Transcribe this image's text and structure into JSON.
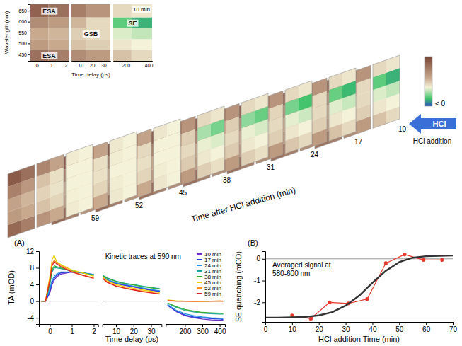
{
  "chart_data": [
    {
      "type": "heatmap",
      "title": "10 min",
      "xlabel": "Time delay (ps)",
      "ylabel": "Wavelength (nm)",
      "annotations": [
        "ESA",
        "GSB",
        "SE",
        "ESA"
      ],
      "segments": [
        {
          "xlim": [
            -0.5,
            2.2
          ],
          "xticks": [
            0,
            1,
            2
          ],
          "x_edges": [
            -0.5,
            0.8,
            2.2
          ]
        },
        {
          "xlim": [
            2.2,
            36
          ],
          "xticks": [
            10,
            20,
            30
          ],
          "x_edges": [
            2.2,
            15,
            36
          ]
        },
        {
          "xlim": [
            90,
            430
          ],
          "xticks": [
            200,
            400
          ],
          "x_edges": [
            90,
            250,
            430
          ]
        }
      ],
      "ylim": [
        420,
        680
      ],
      "yticks": [
        450,
        500,
        550,
        600,
        650
      ],
      "y_edges": [
        420,
        470,
        520,
        570,
        620,
        680
      ],
      "cells": [
        [
          7,
          6,
          5,
          4,
          2,
          1
        ],
        [
          4,
          3,
          2,
          1.5,
          0.5,
          0
        ],
        [
          3,
          2.5,
          1.5,
          1,
          -0.5,
          -1
        ],
        [
          5,
          4,
          2.5,
          1,
          -3,
          -4
        ],
        [
          8,
          7,
          6,
          4.5,
          1,
          0.5
        ]
      ]
    },
    {
      "type": "heatmap_stack",
      "xlabel": "Time after HCl addition (min)",
      "arrow_label": "HCl",
      "arrow_caption": "HCl addition",
      "colorbar": {
        "lim": [
          -6,
          10
        ],
        "label": "< 0"
      },
      "panels": [
        {
          "time": 10,
          "cells": [
            [
              7,
              6,
              5,
              4,
              2,
              1
            ],
            [
              4,
              3,
              2,
              1.5,
              0.5,
              0
            ],
            [
              3,
              2.5,
              1.5,
              1,
              -0.5,
              -1
            ],
            [
              5,
              4,
              2.5,
              1,
              -3,
              -4
            ],
            [
              8,
              7,
              6,
              4.5,
              1,
              0.5
            ]
          ]
        },
        {
          "time": 17,
          "cells": [
            [
              7,
              6,
              5,
              4,
              2,
              1
            ],
            [
              4,
              3,
              2,
              1.5,
              0.5,
              0
            ],
            [
              3,
              2.5,
              1.5,
              1,
              -0.4,
              -0.9
            ],
            [
              5,
              4,
              2.5,
              1,
              -2.8,
              -3.8
            ],
            [
              8,
              7,
              6,
              4.5,
              1,
              0.5
            ]
          ]
        },
        {
          "time": 24,
          "cells": [
            [
              7,
              6,
              5,
              4,
              1.8,
              1
            ],
            [
              4,
              3,
              2,
              1.5,
              0.5,
              0
            ],
            [
              3,
              2.5,
              1.5,
              1,
              -0.3,
              -0.8
            ],
            [
              5,
              4,
              2.6,
              1.2,
              -2.5,
              -3.5
            ],
            [
              8,
              7,
              6,
              4.5,
              1,
              0.5
            ]
          ]
        },
        {
          "time": 31,
          "cells": [
            [
              7,
              6,
              5,
              4,
              1.5,
              0.8
            ],
            [
              4,
              3,
              2.2,
              1.6,
              0.4,
              0
            ],
            [
              3.2,
              2.6,
              1.6,
              1,
              -0.2,
              -0.6
            ],
            [
              5.5,
              4.5,
              3,
              1.5,
              -2,
              -2.8
            ],
            [
              8,
              7,
              6,
              4.5,
              1,
              0.5
            ]
          ]
        },
        {
          "time": 38,
          "cells": [
            [
              7,
              6,
              5,
              4,
              1.5,
              0.8
            ],
            [
              4,
              3,
              2.2,
              1.6,
              0.4,
              0
            ],
            [
              3.2,
              2.6,
              1.6,
              1,
              -0.2,
              -0.5
            ],
            [
              5.5,
              4.5,
              3,
              1.5,
              -1.5,
              -2.5
            ],
            [
              8,
              7,
              6,
              4.5,
              1,
              0.5
            ]
          ]
        },
        {
          "time": 45,
          "cells": [
            [
              7.5,
              6,
              4.5,
              3,
              0.5,
              0
            ],
            [
              4,
              3,
              2,
              1.2,
              0.2,
              0
            ],
            [
              3.5,
              2.5,
              1.5,
              0.8,
              0,
              0
            ],
            [
              6,
              4.5,
              2.5,
              1,
              0,
              0
            ],
            [
              8.5,
              7,
              5.5,
              3.5,
              0.5,
              0
            ]
          ]
        },
        {
          "time": 52,
          "cells": [
            [
              7.5,
              6,
              4.5,
              3,
              0.4,
              0
            ],
            [
              4,
              3,
              2,
              1.2,
              0.2,
              0
            ],
            [
              3.5,
              2.5,
              1.4,
              0.7,
              0,
              0
            ],
            [
              6,
              4.5,
              2.2,
              0.8,
              0.2,
              0
            ],
            [
              8.5,
              7,
              5.5,
              3.5,
              0.4,
              0
            ]
          ]
        },
        {
          "time": 59,
          "cells": [
            [
              7.5,
              6,
              4.5,
              3,
              0.3,
              0
            ],
            [
              4,
              3,
              2,
              1.2,
              0.1,
              0
            ],
            [
              3.5,
              2.5,
              1.3,
              0.6,
              0,
              0
            ],
            [
              5.8,
              4.3,
              2,
              0.8,
              0,
              0
            ],
            [
              8.5,
              7,
              5.5,
              3.5,
              0.3,
              0
            ]
          ]
        }
      ]
    },
    {
      "type": "line",
      "title": "Kinetic traces at 590 nm",
      "panel_label": "(A)",
      "xlabel": "Time delay (ps)",
      "ylabel": "TA (mOD)",
      "legend": "top-right",
      "x": [
        -0.4,
        -0.2,
        0,
        0.1,
        0.2,
        0.3,
        0.5,
        1,
        1.5,
        2,
        2.5,
        5,
        10,
        15,
        20,
        25,
        30,
        35,
        100,
        150,
        200,
        250,
        300,
        350,
        400,
        420
      ],
      "segments": [
        {
          "xlim": [
            -0.5,
            2.2
          ],
          "xticks": [
            0,
            1,
            2
          ]
        },
        {
          "xlim": [
            2.2,
            36
          ],
          "xticks": [
            10,
            20,
            30
          ]
        },
        {
          "xlim": [
            90,
            430
          ],
          "xticks": [
            200,
            300,
            400
          ]
        }
      ],
      "ylim": [
        -5.5,
        12
      ],
      "yticks": [
        -4,
        0,
        4,
        8,
        12
      ],
      "reference_line": 0,
      "series": [
        {
          "name": "10 min",
          "color": "#7030c8",
          "values": [
            0,
            0,
            2,
            4,
            5,
            5.8,
            6.5,
            7,
            6.8,
            6.3,
            6,
            5,
            4.2,
            3.8,
            3.4,
            3,
            2.6,
            2.3,
            -1,
            -2.5,
            -3.5,
            -4,
            -4.3,
            -4.5,
            -4.6,
            -4.6
          ]
        },
        {
          "name": "17 min",
          "color": "#2040e0",
          "values": [
            0,
            0,
            2.5,
            4.5,
            5.5,
            6.2,
            6.8,
            7,
            6.8,
            6.4,
            6,
            5.1,
            4.3,
            3.9,
            3.5,
            3.1,
            2.7,
            2.4,
            -1,
            -2.4,
            -3.3,
            -3.8,
            -4,
            -4.2,
            -4.3,
            -4.4
          ]
        },
        {
          "name": "24 min",
          "color": "#2a90e0",
          "values": [
            0,
            0,
            3,
            5,
            6,
            6.5,
            7,
            7,
            6.8,
            6.4,
            6.1,
            5.2,
            4.4,
            4,
            3.6,
            3.2,
            2.8,
            2.5,
            -0.8,
            -2.2,
            -3,
            -3.5,
            -3.8,
            -4,
            -4.1,
            -4.2
          ]
        },
        {
          "name": "31 min",
          "color": "#20a8a0",
          "values": [
            0,
            0,
            4,
            7,
            8,
            8,
            7.8,
            7.2,
            6.8,
            6.3,
            6.2,
            5.6,
            4.8,
            4.3,
            4,
            3.6,
            3.3,
            3,
            -0.5,
            -1.5,
            -2.2,
            -2.6,
            -2.9,
            -3,
            -3.1,
            -3.1
          ]
        },
        {
          "name": "38 min",
          "color": "#38b030",
          "values": [
            0,
            0,
            4.5,
            7.5,
            8.5,
            8.3,
            8,
            7.3,
            6.8,
            6.2,
            6.1,
            5.5,
            4.7,
            4.2,
            3.9,
            3.5,
            3.2,
            2.9,
            -0.4,
            -1.3,
            -2,
            -2.4,
            -2.7,
            -2.8,
            -2.9,
            -3
          ]
        },
        {
          "name": "45 min",
          "color": "#e8d000",
          "values": [
            0,
            0,
            6,
            10,
            11,
            9.5,
            8.8,
            7.5,
            6.8,
            6,
            5.8,
            4.9,
            4,
            3.5,
            3.1,
            2.7,
            2.4,
            2.1,
            0.3,
            0.1,
            0,
            0,
            -0.1,
            0,
            0,
            0
          ]
        },
        {
          "name": "52 min",
          "color": "#ff9020",
          "values": [
            0,
            0,
            5.5,
            9,
            9.8,
            9.3,
            8.6,
            7.2,
            6.3,
            5.6,
            5.5,
            4.6,
            3.7,
            3.2,
            2.8,
            2.4,
            2.1,
            1.8,
            0.2,
            0,
            0,
            -0.1,
            0,
            0,
            0.1,
            0
          ]
        },
        {
          "name": "59 min",
          "color": "#e02020",
          "values": [
            0,
            0,
            5,
            8.5,
            9.5,
            9,
            8.3,
            7,
            6.2,
            5.5,
            5.4,
            4.5,
            3.6,
            3.1,
            2.7,
            2.3,
            2,
            1.7,
            0.1,
            0,
            0,
            0,
            0,
            0,
            0,
            0
          ]
        }
      ]
    },
    {
      "type": "line",
      "annotation": [
        "Averaged signal at",
        "580-600 nm"
      ],
      "panel_label": "(B)",
      "xlabel": "HCl addition Time (min)",
      "ylabel": "SE quenching (mOD)",
      "xlim": [
        0,
        70
      ],
      "xticks": [
        0,
        10,
        20,
        30,
        40,
        50,
        60,
        70
      ],
      "ylim": [
        -2.9,
        0.35
      ],
      "yticks": [
        -2,
        -1,
        0
      ],
      "reference_line": 0,
      "series": [
        {
          "color": "#e8382c",
          "marker": "circle",
          "x": [
            10,
            17,
            24,
            31,
            38,
            45,
            52,
            59,
            66
          ],
          "values": [
            -2.6,
            -2.75,
            -2.0,
            -2.05,
            -1.85,
            -0.2,
            0.2,
            -0.05,
            -0.05
          ]
        },
        {
          "color": "#333333",
          "x": [
            0,
            5,
            10,
            15,
            20,
            25,
            30,
            35,
            40,
            45,
            50,
            55,
            60,
            65,
            70
          ],
          "values": [
            -2.7,
            -2.7,
            -2.69,
            -2.67,
            -2.6,
            -2.45,
            -2.15,
            -1.7,
            -1.1,
            -0.55,
            -0.15,
            0.05,
            0.12,
            0.14,
            0.15
          ]
        }
      ]
    }
  ]
}
